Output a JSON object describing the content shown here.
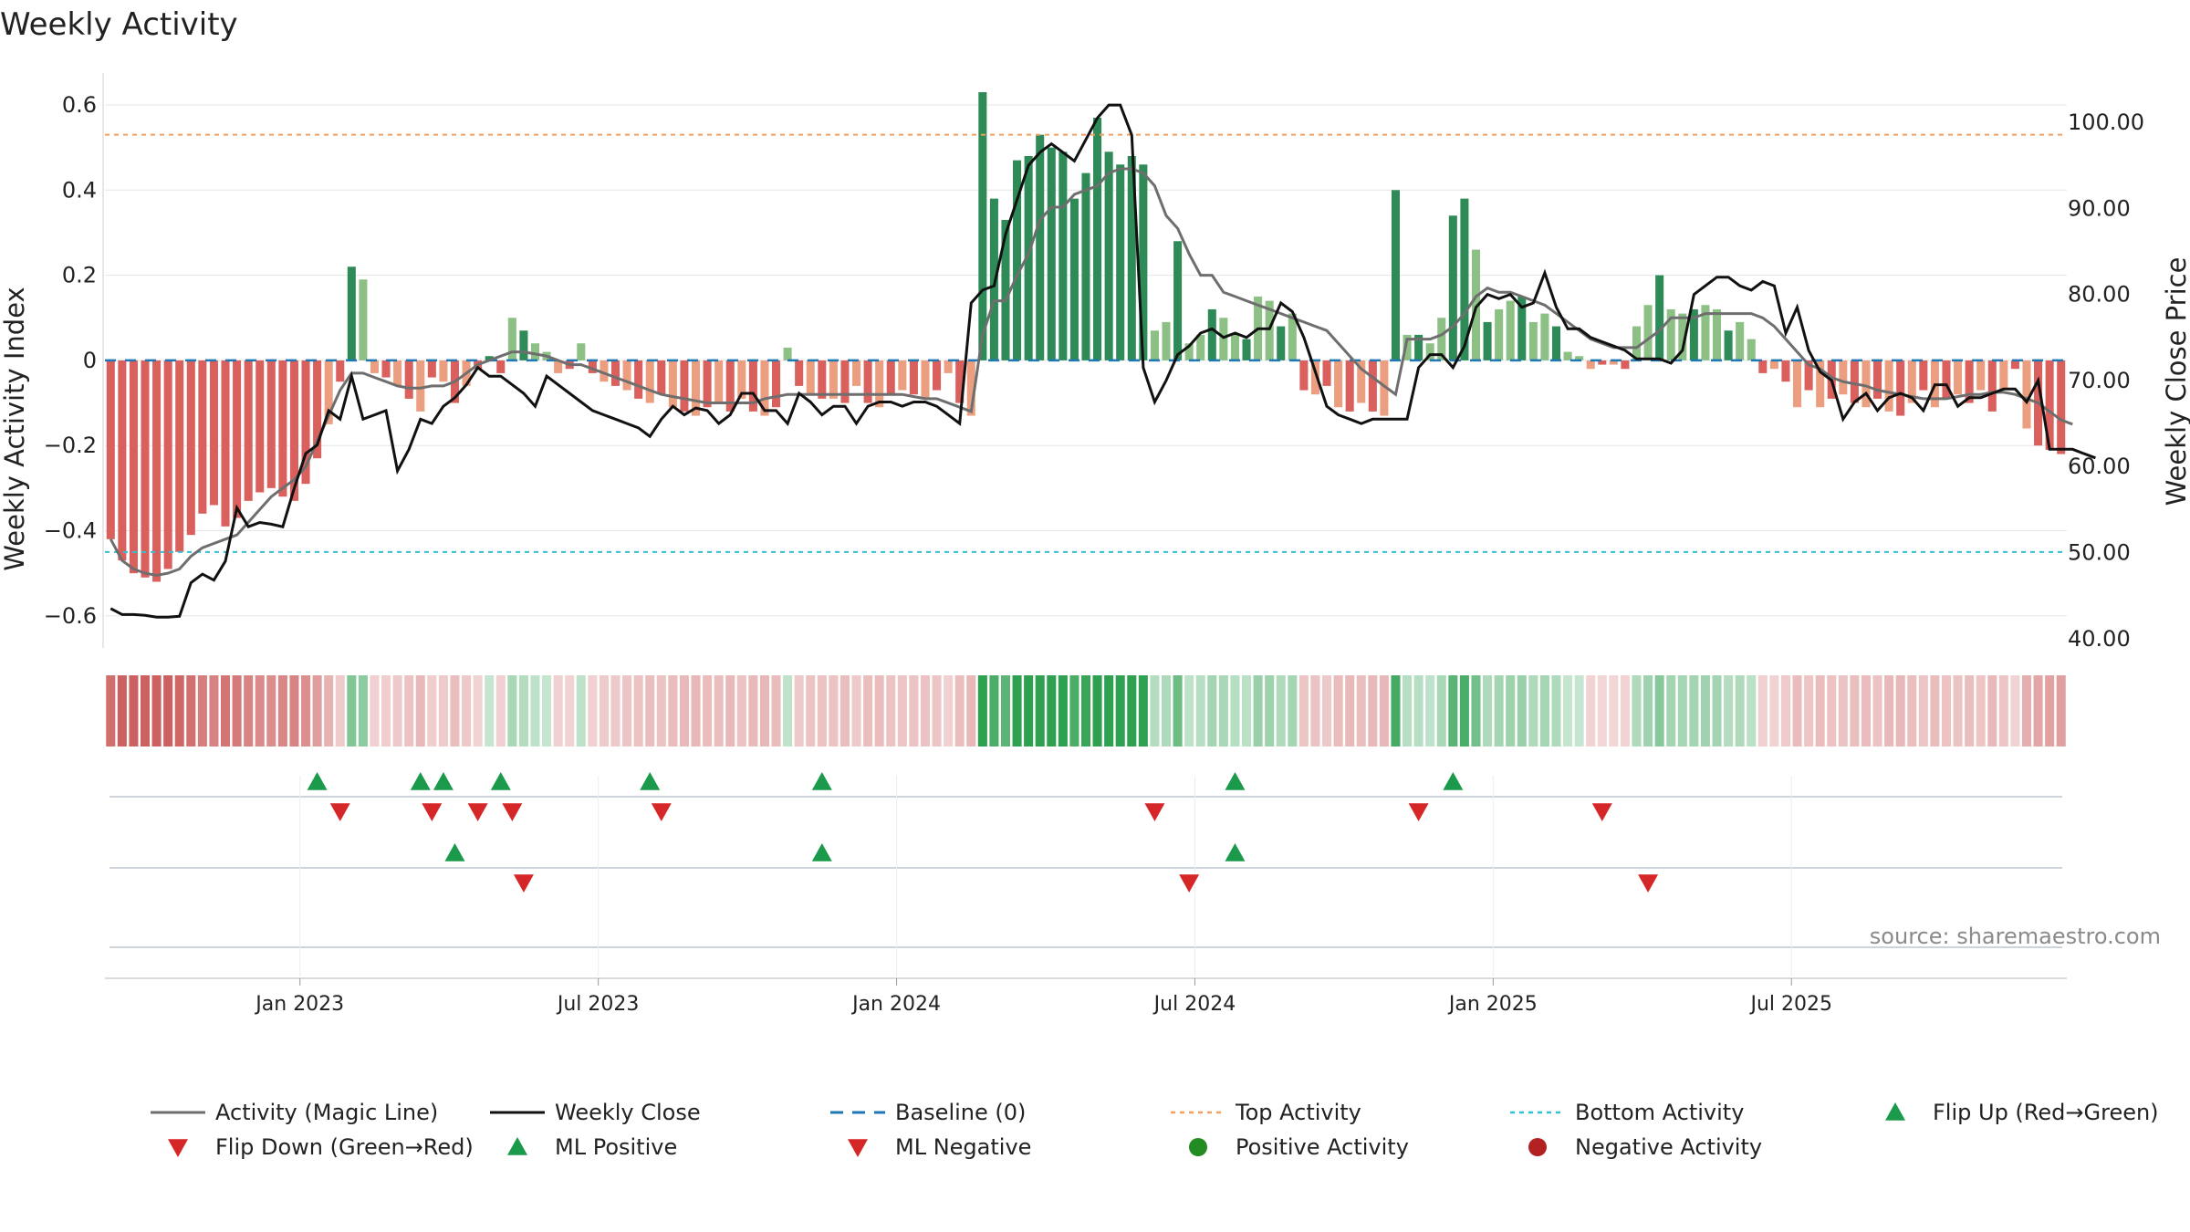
{
  "title": "Weekly Activity",
  "source": "source: sharemaestro.com",
  "chart_data": {
    "type": "bar+line",
    "title": "Weekly Activity",
    "ylabel_left": "Weekly Activity Index",
    "ylabel_right": "Weekly Close Price",
    "yticks_left": [
      "0.6",
      "0.4",
      "0.2",
      "0",
      "−0.2",
      "−0.4",
      "−0.6"
    ],
    "yticks_left_values": [
      0.6,
      0.4,
      0.2,
      0,
      -0.2,
      -0.4,
      -0.6
    ],
    "ylim_left": [
      -0.67,
      0.62
    ],
    "yticks_right": [
      "100.00",
      "90.00",
      "80.00",
      "70.00",
      "60.00",
      "50.00",
      "40.00"
    ],
    "yticks_right_values": [
      100,
      90,
      80,
      70,
      60,
      50,
      40
    ],
    "ylim_right": [
      40,
      103
    ],
    "x_ticks": [
      "Jan 2023",
      "Jul 2023",
      "Jan 2024",
      "Jul 2024",
      "Jan 2025",
      "Jul 2025"
    ],
    "x_tick_weeks": [
      17,
      43,
      69,
      95,
      121,
      147
    ],
    "top_activity": 0.53,
    "bottom_activity": -0.45,
    "baseline": 0,
    "activity": [
      -0.42,
      -0.47,
      -0.5,
      -0.51,
      -0.52,
      -0.49,
      -0.45,
      -0.41,
      -0.36,
      -0.34,
      -0.39,
      -0.37,
      -0.33,
      -0.31,
      -0.3,
      -0.32,
      -0.33,
      -0.29,
      -0.23,
      -0.15,
      -0.05,
      0.22,
      0.19,
      -0.03,
      -0.04,
      -0.06,
      -0.09,
      -0.12,
      -0.04,
      -0.05,
      -0.1,
      -0.06,
      -0.02,
      0.01,
      -0.03,
      0.1,
      0.07,
      0.04,
      0.02,
      -0.03,
      -0.02,
      0.04,
      -0.03,
      -0.05,
      -0.06,
      -0.07,
      -0.09,
      -0.1,
      -0.08,
      -0.11,
      -0.12,
      -0.13,
      -0.11,
      -0.1,
      -0.12,
      -0.09,
      -0.12,
      -0.13,
      -0.11,
      0.03,
      -0.06,
      -0.08,
      -0.09,
      -0.09,
      -0.1,
      -0.06,
      -0.1,
      -0.11,
      -0.08,
      -0.07,
      -0.08,
      -0.09,
      -0.07,
      -0.03,
      -0.1,
      -0.13,
      0.63,
      0.38,
      0.33,
      0.47,
      0.48,
      0.53,
      0.5,
      0.49,
      0.38,
      0.44,
      0.57,
      0.49,
      0.46,
      0.48,
      0.46,
      0.07,
      0.09,
      0.28,
      0.04,
      0.06,
      0.12,
      0.1,
      0.06,
      0.05,
      0.15,
      0.14,
      0.08,
      0.11,
      -0.07,
      -0.08,
      -0.06,
      -0.11,
      -0.12,
      -0.1,
      -0.12,
      -0.13,
      0.4,
      0.06,
      0.06,
      0.04,
      0.1,
      0.34,
      0.38,
      0.26,
      0.09,
      0.12,
      0.14,
      0.15,
      0.09,
      0.11,
      0.08,
      0.02,
      0.01,
      -0.02,
      -0.01,
      -0.01,
      -0.02,
      0.08,
      0.13,
      0.2,
      0.12,
      0.11,
      0.12,
      0.13,
      0.12,
      0.07,
      0.09,
      0.05,
      -0.03,
      -0.02,
      -0.05,
      -0.11,
      -0.07,
      -0.11,
      -0.09,
      -0.08,
      -0.1,
      -0.11,
      -0.09,
      -0.12,
      -0.13,
      -0.1,
      -0.07,
      -0.11,
      -0.09,
      -0.08,
      -0.1,
      -0.07,
      -0.12,
      -0.07,
      -0.02,
      -0.16,
      -0.2,
      -0.21,
      -0.22
    ],
    "magic_line": [
      -0.42,
      -0.47,
      -0.49,
      -0.5,
      -0.505,
      -0.5,
      -0.49,
      -0.46,
      -0.44,
      -0.43,
      -0.42,
      -0.41,
      -0.38,
      -0.35,
      -0.32,
      -0.3,
      -0.28,
      -0.25,
      -0.19,
      -0.13,
      -0.07,
      -0.03,
      -0.03,
      -0.04,
      -0.05,
      -0.06,
      -0.065,
      -0.065,
      -0.06,
      -0.06,
      -0.05,
      -0.03,
      -0.01,
      0.0,
      0.01,
      0.02,
      0.02,
      0.015,
      0.01,
      0.0,
      -0.01,
      -0.01,
      -0.02,
      -0.03,
      -0.04,
      -0.05,
      -0.06,
      -0.07,
      -0.08,
      -0.085,
      -0.09,
      -0.095,
      -0.1,
      -0.1,
      -0.1,
      -0.1,
      -0.1,
      -0.09,
      -0.085,
      -0.08,
      -0.08,
      -0.08,
      -0.08,
      -0.08,
      -0.08,
      -0.08,
      -0.08,
      -0.08,
      -0.08,
      -0.08,
      -0.085,
      -0.09,
      -0.09,
      -0.1,
      -0.11,
      -0.12,
      0.06,
      0.14,
      0.14,
      0.2,
      0.25,
      0.33,
      0.36,
      0.36,
      0.39,
      0.4,
      0.41,
      0.44,
      0.45,
      0.45,
      0.44,
      0.41,
      0.34,
      0.31,
      0.25,
      0.2,
      0.2,
      0.16,
      0.15,
      0.14,
      0.13,
      0.12,
      0.11,
      0.1,
      0.09,
      0.08,
      0.07,
      0.04,
      0.01,
      -0.02,
      -0.04,
      -0.06,
      -0.08,
      0.05,
      0.05,
      0.05,
      0.06,
      0.08,
      0.11,
      0.15,
      0.17,
      0.16,
      0.16,
      0.15,
      0.14,
      0.13,
      0.11,
      0.09,
      0.07,
      0.05,
      0.04,
      0.03,
      0.03,
      0.03,
      0.05,
      0.07,
      0.1,
      0.1,
      0.1,
      0.11,
      0.11,
      0.11,
      0.11,
      0.11,
      0.1,
      0.08,
      0.05,
      0.02,
      -0.01,
      -0.02,
      -0.04,
      -0.05,
      -0.055,
      -0.06,
      -0.07,
      -0.075,
      -0.08,
      -0.085,
      -0.09,
      -0.09,
      -0.09,
      -0.085,
      -0.08,
      -0.08,
      -0.075,
      -0.075,
      -0.08,
      -0.09,
      -0.1,
      -0.12,
      -0.14,
      -0.15
    ],
    "weekly_close": [
      43.5,
      42.8,
      42.8,
      42.7,
      42.5,
      42.5,
      42.6,
      46.5,
      47.5,
      46.8,
      49,
      55.2,
      53,
      53.5,
      53.3,
      53,
      57.5,
      61.5,
      62.5,
      66.5,
      65.5,
      70.5,
      65.5,
      66,
      66.5,
      59.5,
      62,
      65.5,
      65,
      67,
      68,
      69.5,
      71.5,
      70.5,
      70.5,
      69.5,
      68.5,
      67,
      70.5,
      69.5,
      68.5,
      67.5,
      66.5,
      66,
      65.5,
      65,
      64.5,
      63.5,
      65.5,
      67,
      66,
      66.8,
      66.5,
      65,
      66,
      68.5,
      68.5,
      66.5,
      66.5,
      65,
      68.5,
      67.5,
      66,
      67,
      67,
      65,
      67,
      67.5,
      67.5,
      67,
      67.5,
      67.5,
      67,
      66,
      65,
      79,
      80.5,
      81,
      87,
      91,
      95,
      96.5,
      97.5,
      96.5,
      95.5,
      98,
      100.5,
      102,
      102,
      98.5,
      71.5,
      67.5,
      70,
      73,
      74,
      75.5,
      76,
      75,
      75.5,
      75,
      76,
      76,
      79,
      78,
      75,
      71,
      67,
      66,
      65.5,
      65,
      65.5,
      65.5,
      65.5,
      65.5,
      71.5,
      73,
      73,
      71.5,
      74,
      78.5,
      80,
      79.5,
      80,
      78.5,
      79,
      82.5,
      78.5,
      76,
      76,
      75,
      74.5,
      74,
      73.5,
      72.5,
      72.5,
      72.5,
      72,
      73.5,
      80,
      81,
      82,
      82,
      81,
      80.5,
      81.5,
      81,
      75.5,
      78.5,
      73.5,
      71,
      70,
      65.5,
      67.5,
      68.5,
      66.5,
      68,
      68.5,
      68,
      66.5,
      69.5,
      69.5,
      67,
      68,
      68,
      68.5,
      69,
      69,
      67.5,
      70,
      62,
      62,
      62,
      61.5,
      61
    ],
    "heat_row": [
      -0.42,
      -0.47,
      -0.5,
      -0.51,
      -0.52,
      -0.49,
      -0.45,
      -0.41,
      -0.36,
      -0.34,
      -0.39,
      -0.37,
      -0.33,
      -0.31,
      -0.3,
      -0.32,
      -0.33,
      -0.29,
      -0.23,
      -0.15,
      -0.05,
      0.22,
      0.19,
      -0.03,
      -0.04,
      -0.06,
      -0.09,
      -0.12,
      -0.04,
      -0.05,
      -0.1,
      -0.06,
      -0.02,
      0.01,
      -0.03,
      0.1,
      0.07,
      0.04,
      0.02,
      -0.03,
      -0.02,
      0.04,
      -0.03,
      -0.05,
      -0.06,
      -0.07,
      -0.09,
      -0.1,
      -0.08,
      -0.11,
      -0.12,
      -0.13,
      -0.11,
      -0.1,
      -0.12,
      -0.09,
      -0.12,
      -0.13,
      -0.11,
      0.03,
      -0.06,
      -0.08,
      -0.09,
      -0.09,
      -0.1,
      -0.06,
      -0.1,
      -0.11,
      -0.08,
      -0.07,
      -0.08,
      -0.09,
      -0.07,
      -0.03,
      -0.1,
      -0.13,
      0.63,
      0.38,
      0.33,
      0.47,
      0.48,
      0.53,
      0.5,
      0.49,
      0.38,
      0.44,
      0.57,
      0.49,
      0.46,
      0.48,
      0.46,
      0.07,
      0.09,
      0.28,
      0.04,
      0.06,
      0.12,
      0.1,
      0.06,
      0.05,
      0.15,
      0.14,
      0.08,
      0.11,
      -0.07,
      -0.08,
      -0.06,
      -0.11,
      -0.12,
      -0.1,
      -0.12,
      -0.13,
      0.4,
      0.06,
      0.06,
      0.04,
      0.1,
      0.34,
      0.38,
      0.26,
      0.09,
      0.12,
      0.14,
      0.15,
      0.09,
      0.11,
      0.08,
      0.02,
      0.01,
      -0.02,
      -0.01,
      -0.01,
      -0.02,
      0.08,
      0.13,
      0.2,
      0.12,
      0.11,
      0.12,
      0.13,
      0.12,
      0.07,
      0.09,
      0.05,
      -0.03,
      -0.02,
      -0.05,
      -0.11,
      -0.07,
      -0.11,
      -0.09,
      -0.08,
      -0.1,
      -0.11,
      -0.09,
      -0.12,
      -0.13,
      -0.1,
      -0.07,
      -0.11,
      -0.09,
      -0.08,
      -0.1,
      -0.07,
      -0.12,
      -0.07,
      -0.02,
      -0.16,
      -0.2,
      -0.21,
      -0.22
    ],
    "flip_up_weeks": [
      18.5,
      27.5,
      29.5,
      34.5,
      47.5,
      62.5,
      98.5,
      117.5
    ],
    "flip_down_weeks": [
      20.5,
      28.5,
      32.5,
      35.5,
      48.5,
      91.5,
      114.5,
      130.5
    ],
    "ml_positive_weeks": [
      30.5,
      62.5,
      98.5
    ],
    "ml_negative_weeks": [
      36.5,
      94.5,
      134.5
    ],
    "legend": [
      {
        "label": "Activity (Magic Line)",
        "kind": "line",
        "color": "#6e6e6e"
      },
      {
        "label": "Weekly Close",
        "kind": "line",
        "color": "#111111"
      },
      {
        "label": "Baseline (0)",
        "kind": "dashed",
        "color": "#1f77b4"
      },
      {
        "label": "Top Activity",
        "kind": "dotted",
        "color": "#f0a060"
      },
      {
        "label": "Bottom Activity",
        "kind": "dotted",
        "color": "#30c0d8"
      },
      {
        "label": "Flip Up (Red→Green)",
        "kind": "tri-up",
        "color": "#1a9a4a"
      },
      {
        "label": "Flip Down (Green→Red)",
        "kind": "tri-down",
        "color": "#d62728"
      },
      {
        "label": "ML Positive",
        "kind": "tri-up",
        "color": "#1a9a4a"
      },
      {
        "label": "ML Negative",
        "kind": "tri-down",
        "color": "#d62728"
      },
      {
        "label": "Positive Activity",
        "kind": "dot",
        "color": "#228b22"
      },
      {
        "label": "Negative Activity",
        "kind": "dot",
        "color": "#b22222"
      }
    ]
  },
  "colors": {
    "pos_strong": "#2e8b57",
    "pos_light": "#8cc084",
    "neg_strong": "#d9605c",
    "neg_light": "#eb9f80",
    "grid": "#e6e6e6",
    "baseline": "#1f77b4",
    "top": "#f0a060",
    "bottom": "#30c0d8",
    "green_marker": "#1a9a4a",
    "red_marker": "#d62728"
  }
}
